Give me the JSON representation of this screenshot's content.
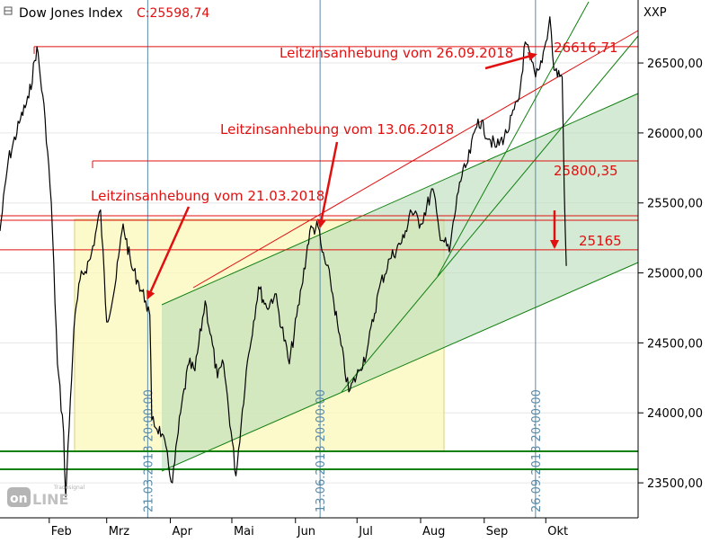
{
  "header": {
    "title": "Dow Jones Index",
    "close_value": "C:25598,74",
    "symbol": "XXP"
  },
  "logo": {
    "text": "Tradesignal online"
  },
  "colors": {
    "price": "#000000",
    "red": "#e01010",
    "green": "#108010",
    "vline": "#5a8aa8",
    "yellow_fill": "#fbf8b8",
    "green_fill": "#cfe8cf",
    "grid": "#e6e6e6"
  },
  "chart_data": {
    "type": "line",
    "title": "Dow Jones Index",
    "ylim": [
      23250,
      26950
    ],
    "y_ticks": [
      {
        "value": 23500,
        "label": "23500,00"
      },
      {
        "value": 24000,
        "label": "24000,00"
      },
      {
        "value": 24500,
        "label": "24500,00"
      },
      {
        "value": 25000,
        "label": "25000,00"
      },
      {
        "value": 25500,
        "label": "25500,00"
      },
      {
        "value": 26000,
        "label": "26000,00"
      },
      {
        "value": 26500,
        "label": "26500,00"
      }
    ],
    "x_ticks": [
      {
        "date": "2018-02-01",
        "label": "Feb"
      },
      {
        "date": "2018-03-01",
        "label": "Mrz"
      },
      {
        "date": "2018-04-01",
        "label": "Apr"
      },
      {
        "date": "2018-05-01",
        "label": "Mai"
      },
      {
        "date": "2018-06-01",
        "label": "Jun"
      },
      {
        "date": "2018-07-01",
        "label": "Jul"
      },
      {
        "date": "2018-08-01",
        "label": "Aug"
      },
      {
        "date": "2018-09-01",
        "label": "Sep"
      },
      {
        "date": "2018-10-01",
        "label": "Okt"
      }
    ],
    "xlim": [
      "2018-01-08",
      "2018-11-15"
    ],
    "series": [
      {
        "points": [
          [
            "2018-01-08",
            25300
          ],
          [
            "2018-01-12",
            25800
          ],
          [
            "2018-01-18",
            26100
          ],
          [
            "2018-01-22",
            26250
          ],
          [
            "2018-01-26",
            26616
          ],
          [
            "2018-01-30",
            26100
          ],
          [
            "2018-02-02",
            25500
          ],
          [
            "2018-02-05",
            24350
          ],
          [
            "2018-02-08",
            23860
          ],
          [
            "2018-02-09",
            23400
          ],
          [
            "2018-02-13",
            24600
          ],
          [
            "2018-02-16",
            24950
          ],
          [
            "2018-02-21",
            25100
          ],
          [
            "2018-02-26",
            25450
          ],
          [
            "2018-03-01",
            24650
          ],
          [
            "2018-03-05",
            24900
          ],
          [
            "2018-03-09",
            25350
          ],
          [
            "2018-03-13",
            25050
          ],
          [
            "2018-03-16",
            24950
          ],
          [
            "2018-03-20",
            24800
          ],
          [
            "2018-03-22",
            24700
          ],
          [
            "2018-03-23",
            23950
          ],
          [
            "2018-03-28",
            23850
          ],
          [
            "2018-04-02",
            23500
          ],
          [
            "2018-04-06",
            24000
          ],
          [
            "2018-04-10",
            24350
          ],
          [
            "2018-04-13",
            24300
          ],
          [
            "2018-04-18",
            24800
          ],
          [
            "2018-04-24",
            24250
          ],
          [
            "2018-04-27",
            24350
          ],
          [
            "2018-05-03",
            23550
          ],
          [
            "2018-05-08",
            24300
          ],
          [
            "2018-05-14",
            24900
          ],
          [
            "2018-05-18",
            24750
          ],
          [
            "2018-05-22",
            24850
          ],
          [
            "2018-05-29",
            24350
          ],
          [
            "2018-06-04",
            24900
          ],
          [
            "2018-06-08",
            25300
          ],
          [
            "2018-06-12",
            25330
          ],
          [
            "2018-06-14",
            25150
          ],
          [
            "2018-06-18",
            24950
          ],
          [
            "2018-06-22",
            24580
          ],
          [
            "2018-06-27",
            24150
          ],
          [
            "2018-07-02",
            24300
          ],
          [
            "2018-07-06",
            24450
          ],
          [
            "2018-07-12",
            24900
          ],
          [
            "2018-07-17",
            25100
          ],
          [
            "2018-07-24",
            25250
          ],
          [
            "2018-07-27",
            25450
          ],
          [
            "2018-08-01",
            25350
          ],
          [
            "2018-08-07",
            25600
          ],
          [
            "2018-08-10",
            25300
          ],
          [
            "2018-08-15",
            25150
          ],
          [
            "2018-08-20",
            25650
          ],
          [
            "2018-08-24",
            25790
          ],
          [
            "2018-08-29",
            26100
          ],
          [
            "2018-09-04",
            25950
          ],
          [
            "2018-09-07",
            25900
          ],
          [
            "2018-09-12",
            26000
          ],
          [
            "2018-09-18",
            26250
          ],
          [
            "2018-09-21",
            26650
          ],
          [
            "2018-09-26",
            26400
          ],
          [
            "2018-09-28",
            26458
          ],
          [
            "2018-10-01",
            26650
          ],
          [
            "2018-10-03",
            26830
          ],
          [
            "2018-10-05",
            26450
          ],
          [
            "2018-10-09",
            26400
          ],
          [
            "2018-10-10",
            25600
          ],
          [
            "2018-10-11",
            25050
          ]
        ]
      }
    ],
    "price_levels": [
      {
        "value": 26616.71,
        "label": "26616,71"
      },
      {
        "value": 25800.35,
        "label": "25800,35"
      },
      {
        "value": 25165,
        "label": "25165"
      }
    ],
    "vertical_markers": [
      {
        "date": "2018-03-21",
        "label": "21.03.2018 20:00:00"
      },
      {
        "date": "2018-06-13",
        "label": "13.06.2018 20:00:00"
      },
      {
        "date": "2018-09-26",
        "label": "26.09.2018 20:00:00"
      }
    ],
    "annotations": [
      {
        "text": "Leitzinsanhebung vom 21.03.2018",
        "target_date": "2018-03-21",
        "target_value": 24820
      },
      {
        "text": "Leitzinsanhebung vom 13.06.2018",
        "target_date": "2018-06-13",
        "target_value": 25330
      },
      {
        "text": "Leitzinsanhebung vom 26.09.2018",
        "target_date": "2018-09-26",
        "target_value": 26560
      }
    ]
  }
}
